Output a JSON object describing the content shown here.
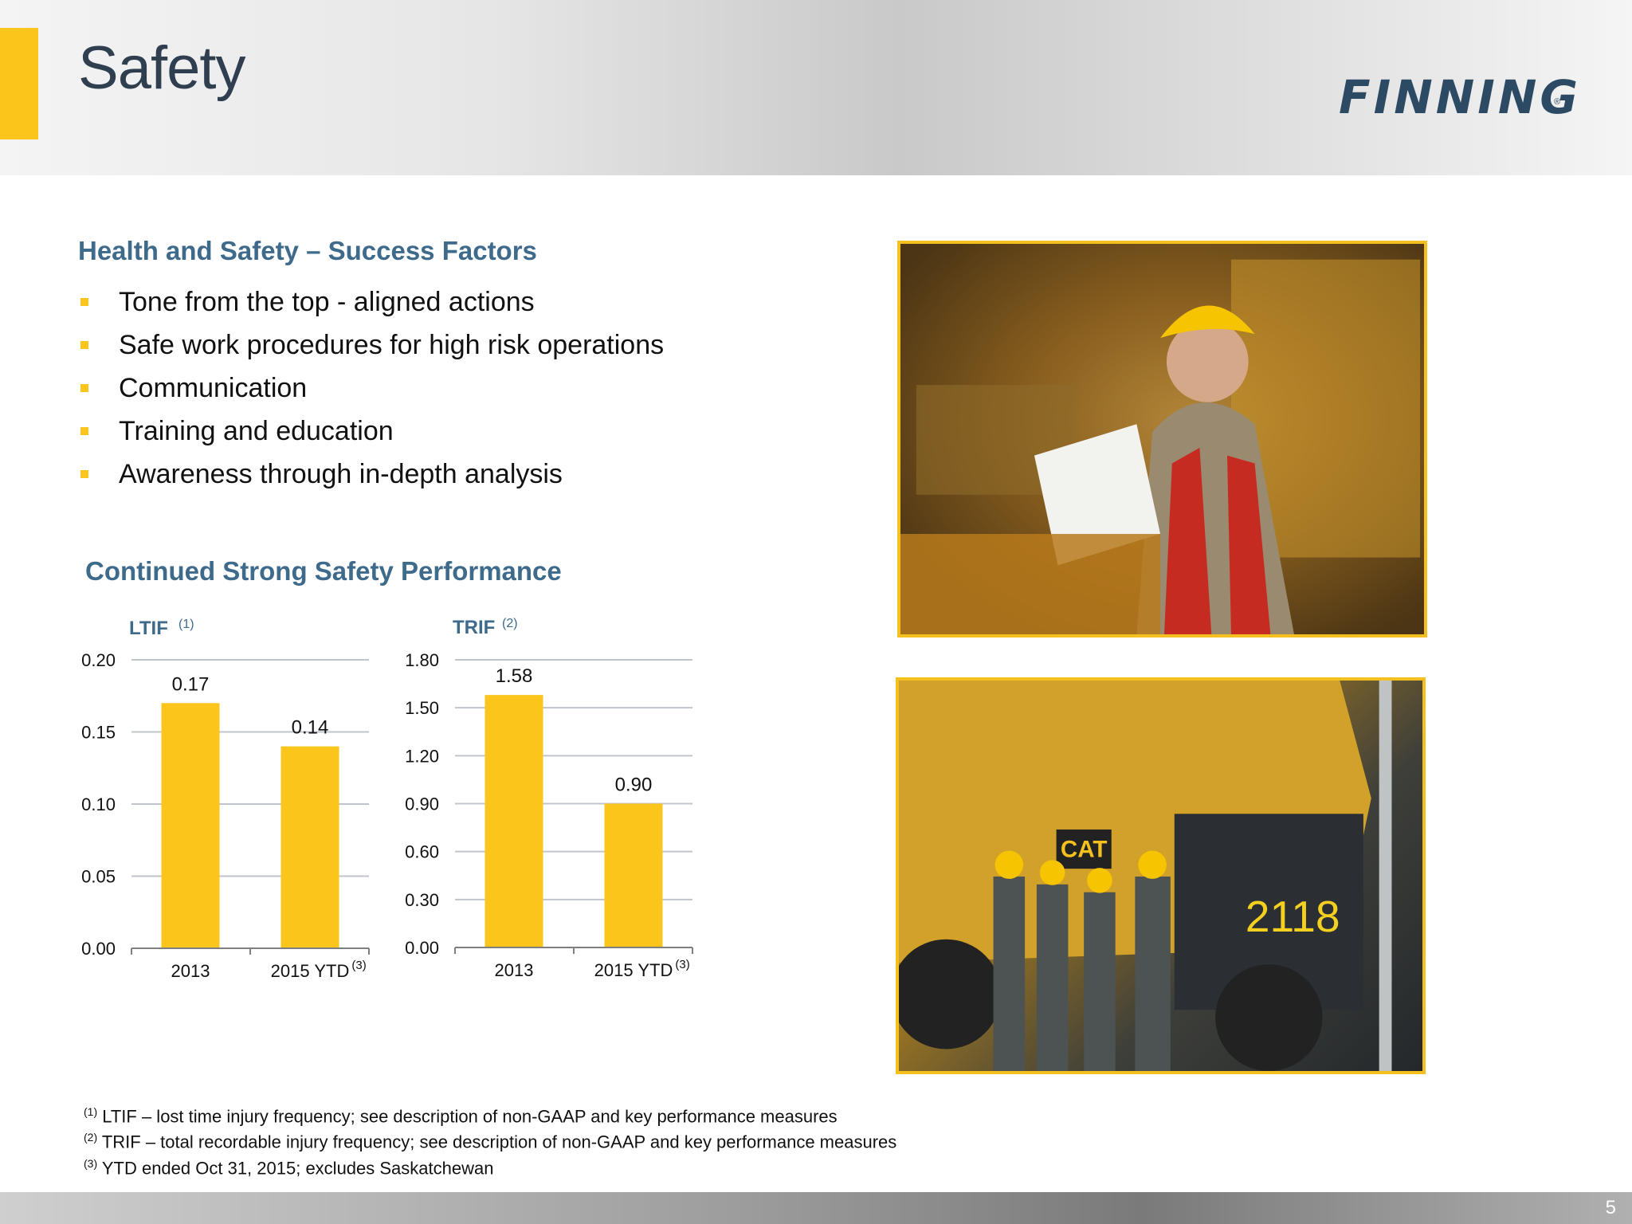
{
  "header": {
    "title": "Safety",
    "logo_text": "FINNING",
    "logo_mark": "®"
  },
  "success_factors": {
    "heading": "Health and Safety – Success Factors",
    "items": [
      "Tone from the top - aligned actions",
      "Safe work procedures for high risk operations",
      "Communication",
      "Training and education",
      "Awareness through in-depth analysis"
    ]
  },
  "performance": {
    "heading": "Continued Strong Safety Performance"
  },
  "chart_data": [
    {
      "type": "bar",
      "title": "LTIF",
      "title_note": "(1)",
      "categories": [
        "2013",
        "2015 YTD"
      ],
      "category_notes": [
        "",
        "(3)"
      ],
      "values": [
        0.17,
        0.14
      ],
      "value_labels": [
        "0.17",
        "0.14"
      ],
      "yticks": [
        "0.00",
        "0.05",
        "0.10",
        "0.15",
        "0.20"
      ],
      "ylim": [
        0,
        0.2
      ],
      "grid": true,
      "color": "#fcc51c"
    },
    {
      "type": "bar",
      "title": "TRIF",
      "title_note": "(2)",
      "categories": [
        "2013",
        "2015 YTD"
      ],
      "category_notes": [
        "",
        "(3)"
      ],
      "values": [
        1.58,
        0.9
      ],
      "value_labels": [
        "1.58",
        "0.90"
      ],
      "yticks": [
        "0.00",
        "0.30",
        "0.60",
        "0.90",
        "1.20",
        "1.50",
        "1.80"
      ],
      "ylim": [
        0,
        1.8
      ],
      "grid": true,
      "color": "#fcc51c"
    }
  ],
  "footnotes": [
    {
      "mark": "(1)",
      "text": "LTIF – lost time injury frequency; see description of non-GAAP and key performance measures"
    },
    {
      "mark": "(2)",
      "text": "TRIF – total recordable injury frequency; see description of non-GAAP and key performance measures"
    },
    {
      "mark": "(3)",
      "text": "YTD ended Oct 31, 2015; excludes Saskatchewan"
    }
  ],
  "photos": {
    "top_truck_number": "2118",
    "cat_badge": "CAT"
  },
  "page_number": "5",
  "colors": {
    "accent": "#fcc51c",
    "heading": "#3e6a8c",
    "title": "#2f3f4f"
  }
}
